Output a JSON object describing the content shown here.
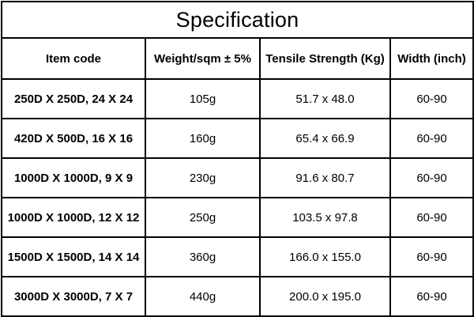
{
  "table": {
    "title": "Specification",
    "headers": [
      "Item code",
      "Weight/sqm ± 5%",
      "Tensile Strength (Kg)",
      "Width (inch)"
    ],
    "rows": [
      [
        "250D X 250D, 24 X 24",
        "105g",
        "51.7 x 48.0",
        "60-90"
      ],
      [
        "420D X 500D, 16 X 16",
        "160g",
        "65.4 x 66.9",
        "60-90"
      ],
      [
        "1000D X 1000D, 9 X 9",
        "230g",
        "91.6 x 80.7",
        "60-90"
      ],
      [
        "1000D X 1000D, 12 X 12",
        "250g",
        "103.5 x 97.8",
        "60-90"
      ],
      [
        "1500D X 1500D, 14 X 14",
        "360g",
        "166.0 x 155.0",
        "60-90"
      ],
      [
        "3000D X 3000D, 7 X 7",
        "440g",
        "200.0 x 195.0",
        "60-90"
      ]
    ]
  }
}
